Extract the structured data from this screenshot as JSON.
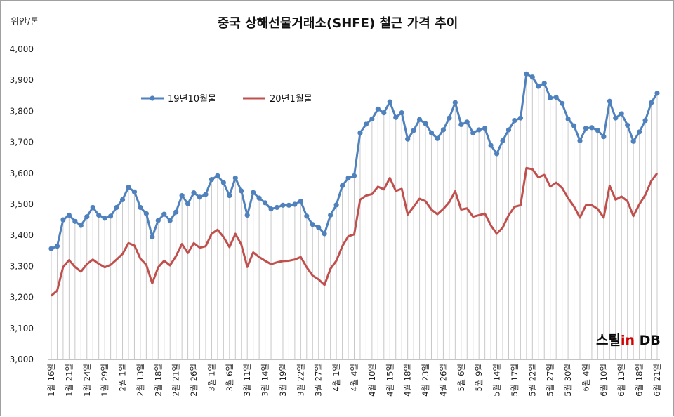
{
  "chart_data": {
    "type": "line",
    "title": "중국 상해선물거래소(SHFE)  철근 가격 추이",
    "unit_label": "위안/톤",
    "ylim": [
      3000,
      4000
    ],
    "yticks": [
      "3,000",
      "3,100",
      "3,200",
      "3,300",
      "3,400",
      "3,500",
      "3,600",
      "3,700",
      "3,800",
      "3,900",
      "4,000"
    ],
    "xlabels": [
      "1월 16일",
      "1월 21일",
      "1월 24일",
      "1월 29일",
      "2월 1일",
      "2월 13일",
      "2월 18일",
      "2월 21일",
      "2월 26일",
      "3월 1일",
      "3월 6일",
      "3월 11일",
      "3월 14일",
      "3월 19일",
      "3월 22일",
      "3월 27일",
      "4월 1일",
      "4월 4일",
      "4월 10일",
      "4월 15일",
      "4월 18일",
      "4월 23일",
      "4월 26일",
      "5월 6일",
      "5월 9일",
      "5월 14일",
      "5월 17일",
      "5월 22일",
      "5월 27일",
      "5월 30일",
      "6월 4일",
      "6월 10일",
      "6월 13일",
      "6월 18일",
      "6월 21일"
    ],
    "legend_position": "top-left",
    "gridlines": "vertical-dropline",
    "series": [
      {
        "name": "19년10월물",
        "color": "#4f81bd",
        "marker": "circle",
        "values": [
          3357,
          3365,
          3450,
          3465,
          3445,
          3432,
          3460,
          3490,
          3465,
          3455,
          3462,
          3490,
          3515,
          3555,
          3540,
          3490,
          3470,
          3395,
          3448,
          3468,
          3448,
          3475,
          3528,
          3502,
          3537,
          3523,
          3532,
          3580,
          3592,
          3570,
          3528,
          3585,
          3543,
          3465,
          3538,
          3520,
          3505,
          3485,
          3490,
          3497,
          3497,
          3500,
          3510,
          3462,
          3435,
          3425,
          3405,
          3465,
          3498,
          3560,
          3585,
          3592,
          3730,
          3758,
          3775,
          3807,
          3795,
          3830,
          3780,
          3795,
          3710,
          3738,
          3773,
          3760,
          3730,
          3712,
          3740,
          3778,
          3828,
          3757,
          3765,
          3730,
          3740,
          3745,
          3690,
          3663,
          3705,
          3740,
          3770,
          3778,
          3920,
          3910,
          3880,
          3890,
          3843,
          3845,
          3825,
          3775,
          3753,
          3705,
          3745,
          3747,
          3738,
          3718,
          3832,
          3778,
          3792,
          3755,
          3703,
          3733,
          3770,
          3827,
          3858
        ]
      },
      {
        "name": "20년1월물",
        "color": "#c0504d",
        "marker": "none",
        "values": [
          3205,
          3222,
          3298,
          3320,
          3298,
          3283,
          3307,
          3322,
          3308,
          3297,
          3305,
          3322,
          3340,
          3375,
          3367,
          3325,
          3305,
          3245,
          3297,
          3318,
          3303,
          3333,
          3372,
          3343,
          3375,
          3360,
          3365,
          3405,
          3418,
          3395,
          3362,
          3405,
          3370,
          3298,
          3345,
          3330,
          3318,
          3307,
          3313,
          3317,
          3318,
          3322,
          3330,
          3297,
          3270,
          3258,
          3240,
          3292,
          3318,
          3365,
          3397,
          3403,
          3515,
          3528,
          3533,
          3557,
          3548,
          3585,
          3543,
          3550,
          3467,
          3492,
          3518,
          3510,
          3483,
          3468,
          3485,
          3507,
          3542,
          3483,
          3487,
          3460,
          3465,
          3470,
          3432,
          3405,
          3425,
          3465,
          3492,
          3497,
          3617,
          3613,
          3587,
          3595,
          3557,
          3570,
          3553,
          3520,
          3493,
          3457,
          3497,
          3497,
          3485,
          3457,
          3560,
          3515,
          3525,
          3510,
          3462,
          3500,
          3530,
          3575,
          3600
        ]
      }
    ]
  },
  "watermark": {
    "part1": "스틸",
    "part2": "in",
    "part3": " DB"
  }
}
